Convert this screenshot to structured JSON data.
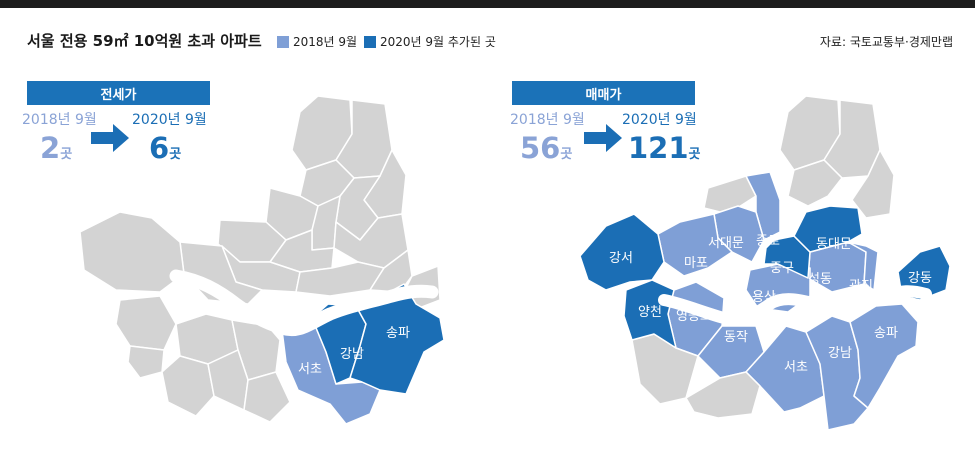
{
  "header": {
    "title": "서울 전용 59㎡ 10억원 초과 아파트",
    "legend": [
      {
        "label": "2018년 9월",
        "color": "#7f9fd6"
      },
      {
        "label": "2020년 9월 추가된 곳",
        "color": "#1b6eb5"
      }
    ],
    "source": "자료: 국토교통부·경제만랩"
  },
  "colors": {
    "base_district": "#d3d3d3",
    "district_2018": "#7f9fd6",
    "district_2020_added": "#1b6eb5",
    "river": "#ffffff"
  },
  "panels": [
    {
      "category": "전세가",
      "from_year": "2018년 9월",
      "from_count": "2",
      "to_year": "2020년 9월",
      "to_count": "6",
      "unit": "곳",
      "districts_2018": [
        "서초",
        "강남"
      ],
      "districts_2020_added": [
        "송파"
      ],
      "labels": [
        "강남",
        "송파",
        "서초"
      ]
    },
    {
      "category": "매매가",
      "from_year": "2018년 9월",
      "from_count": "56",
      "to_year": "2020년 9월",
      "to_count": "121",
      "unit": "곳",
      "districts_2018": [
        "마포",
        "서대문",
        "종로",
        "성동",
        "광진",
        "용산",
        "영등포",
        "동작",
        "서초",
        "강남",
        "송파"
      ],
      "districts_2020_added": [
        "강서",
        "양천",
        "중구",
        "동대문",
        "강동"
      ],
      "labels": [
        "강서",
        "양천",
        "마포",
        "서대문",
        "종로",
        "중구",
        "동대문",
        "성동",
        "광진",
        "용산",
        "영등포",
        "동작",
        "서초",
        "강남",
        "송파",
        "강동"
      ]
    }
  ]
}
